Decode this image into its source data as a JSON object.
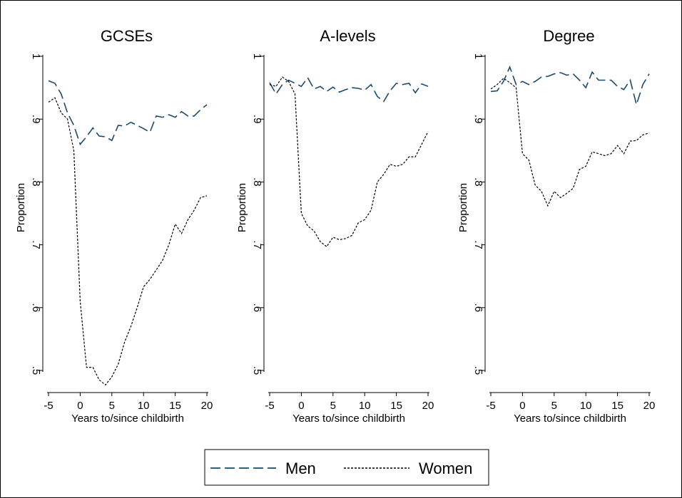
{
  "chart_data": [
    {
      "type": "line",
      "title": "GCSEs",
      "xlabel": "Years to/since childbirth",
      "ylabel": "Proportion",
      "xlim": [
        -5,
        20
      ],
      "ylim": [
        0.5,
        1
      ],
      "xticks": [
        "-5",
        "0",
        "5",
        "10",
        "15",
        "20"
      ],
      "yticks": [
        ".5",
        ".6",
        ".7",
        ".8",
        ".9",
        "1"
      ],
      "x": [
        -5,
        -4,
        -3,
        -2,
        -1,
        0,
        1,
        2,
        3,
        4,
        5,
        6,
        7,
        8,
        9,
        10,
        11,
        12,
        13,
        14,
        15,
        16,
        17,
        18,
        19,
        20
      ],
      "series": [
        {
          "name": "Men",
          "values": [
            0.961,
            0.957,
            0.94,
            0.91,
            0.89,
            0.86,
            0.872,
            0.886,
            0.873,
            0.872,
            0.866,
            0.89,
            0.889,
            0.895,
            0.89,
            0.885,
            0.879,
            0.905,
            0.903,
            0.907,
            0.903,
            0.912,
            0.905,
            0.905,
            0.915,
            0.923
          ]
        },
        {
          "name": "Women",
          "values": [
            0.927,
            0.934,
            0.91,
            0.9,
            0.85,
            0.61,
            0.505,
            0.505,
            0.485,
            0.477,
            0.49,
            0.51,
            0.545,
            0.57,
            0.6,
            0.633,
            0.645,
            0.66,
            0.675,
            0.7,
            0.733,
            0.718,
            0.74,
            0.755,
            0.775,
            0.778
          ]
        }
      ]
    },
    {
      "type": "line",
      "title": "A-levels",
      "xlabel": "Years to/since childbirth",
      "ylabel": "Proportion",
      "xlim": [
        -5,
        20
      ],
      "ylim": [
        0.5,
        1
      ],
      "xticks": [
        "-5",
        "0",
        "5",
        "10",
        "15",
        "20"
      ],
      "yticks": [
        ".5",
        ".6",
        ".7",
        ".8",
        ".9",
        "1"
      ],
      "x": [
        -5,
        -4,
        -3,
        -2,
        -1,
        0,
        1,
        2,
        3,
        4,
        5,
        6,
        7,
        8,
        9,
        10,
        11,
        12,
        13,
        14,
        15,
        16,
        17,
        18,
        19,
        20
      ],
      "series": [
        {
          "name": "Men",
          "values": [
            0.958,
            0.94,
            0.955,
            0.962,
            0.957,
            0.952,
            0.966,
            0.948,
            0.952,
            0.944,
            0.951,
            0.943,
            0.947,
            0.95,
            0.949,
            0.946,
            0.955,
            0.936,
            0.928,
            0.945,
            0.957,
            0.955,
            0.957,
            0.942,
            0.956,
            0.952
          ]
        },
        {
          "name": "Women",
          "values": [
            0.955,
            0.952,
            0.967,
            0.96,
            0.94,
            0.75,
            0.73,
            0.722,
            0.705,
            0.697,
            0.712,
            0.708,
            0.71,
            0.715,
            0.735,
            0.74,
            0.755,
            0.8,
            0.812,
            0.828,
            0.825,
            0.828,
            0.84,
            0.84,
            0.86,
            0.88
          ]
        }
      ]
    },
    {
      "type": "line",
      "title": "Degree",
      "xlabel": "Years to/since childbirth",
      "ylabel": "Proportion",
      "xlim": [
        -5,
        20
      ],
      "ylim": [
        0.5,
        1
      ],
      "xticks": [
        "-5",
        "0",
        "5",
        "10",
        "15",
        "20"
      ],
      "yticks": [
        ".5",
        ".6",
        ".7",
        ".8",
        ".9",
        "1"
      ],
      "x": [
        -5,
        -4,
        -3,
        -2,
        -1,
        0,
        1,
        2,
        3,
        4,
        5,
        6,
        7,
        8,
        9,
        10,
        11,
        12,
        13,
        14,
        15,
        16,
        17,
        18,
        19,
        20
      ],
      "series": [
        {
          "name": "Men",
          "values": [
            0.944,
            0.945,
            0.96,
            0.983,
            0.955,
            0.96,
            0.955,
            0.96,
            0.967,
            0.968,
            0.972,
            0.974,
            0.97,
            0.972,
            0.962,
            0.95,
            0.975,
            0.962,
            0.962,
            0.962,
            0.952,
            0.947,
            0.962,
            0.923,
            0.955,
            0.972
          ]
        },
        {
          "name": "Women",
          "values": [
            0.948,
            0.955,
            0.965,
            0.958,
            0.95,
            0.845,
            0.835,
            0.795,
            0.785,
            0.762,
            0.785,
            0.775,
            0.782,
            0.79,
            0.82,
            0.825,
            0.848,
            0.845,
            0.842,
            0.845,
            0.858,
            0.845,
            0.865,
            0.866,
            0.875,
            0.878
          ]
        }
      ]
    }
  ],
  "legend": {
    "items": [
      {
        "label": "Men",
        "style": "long-dash",
        "color": "#1b4a6b"
      },
      {
        "label": "Women",
        "style": "short-dash",
        "color": "#000000"
      }
    ]
  },
  "colors": {
    "men": "#1b4a6b",
    "women": "#000000"
  }
}
